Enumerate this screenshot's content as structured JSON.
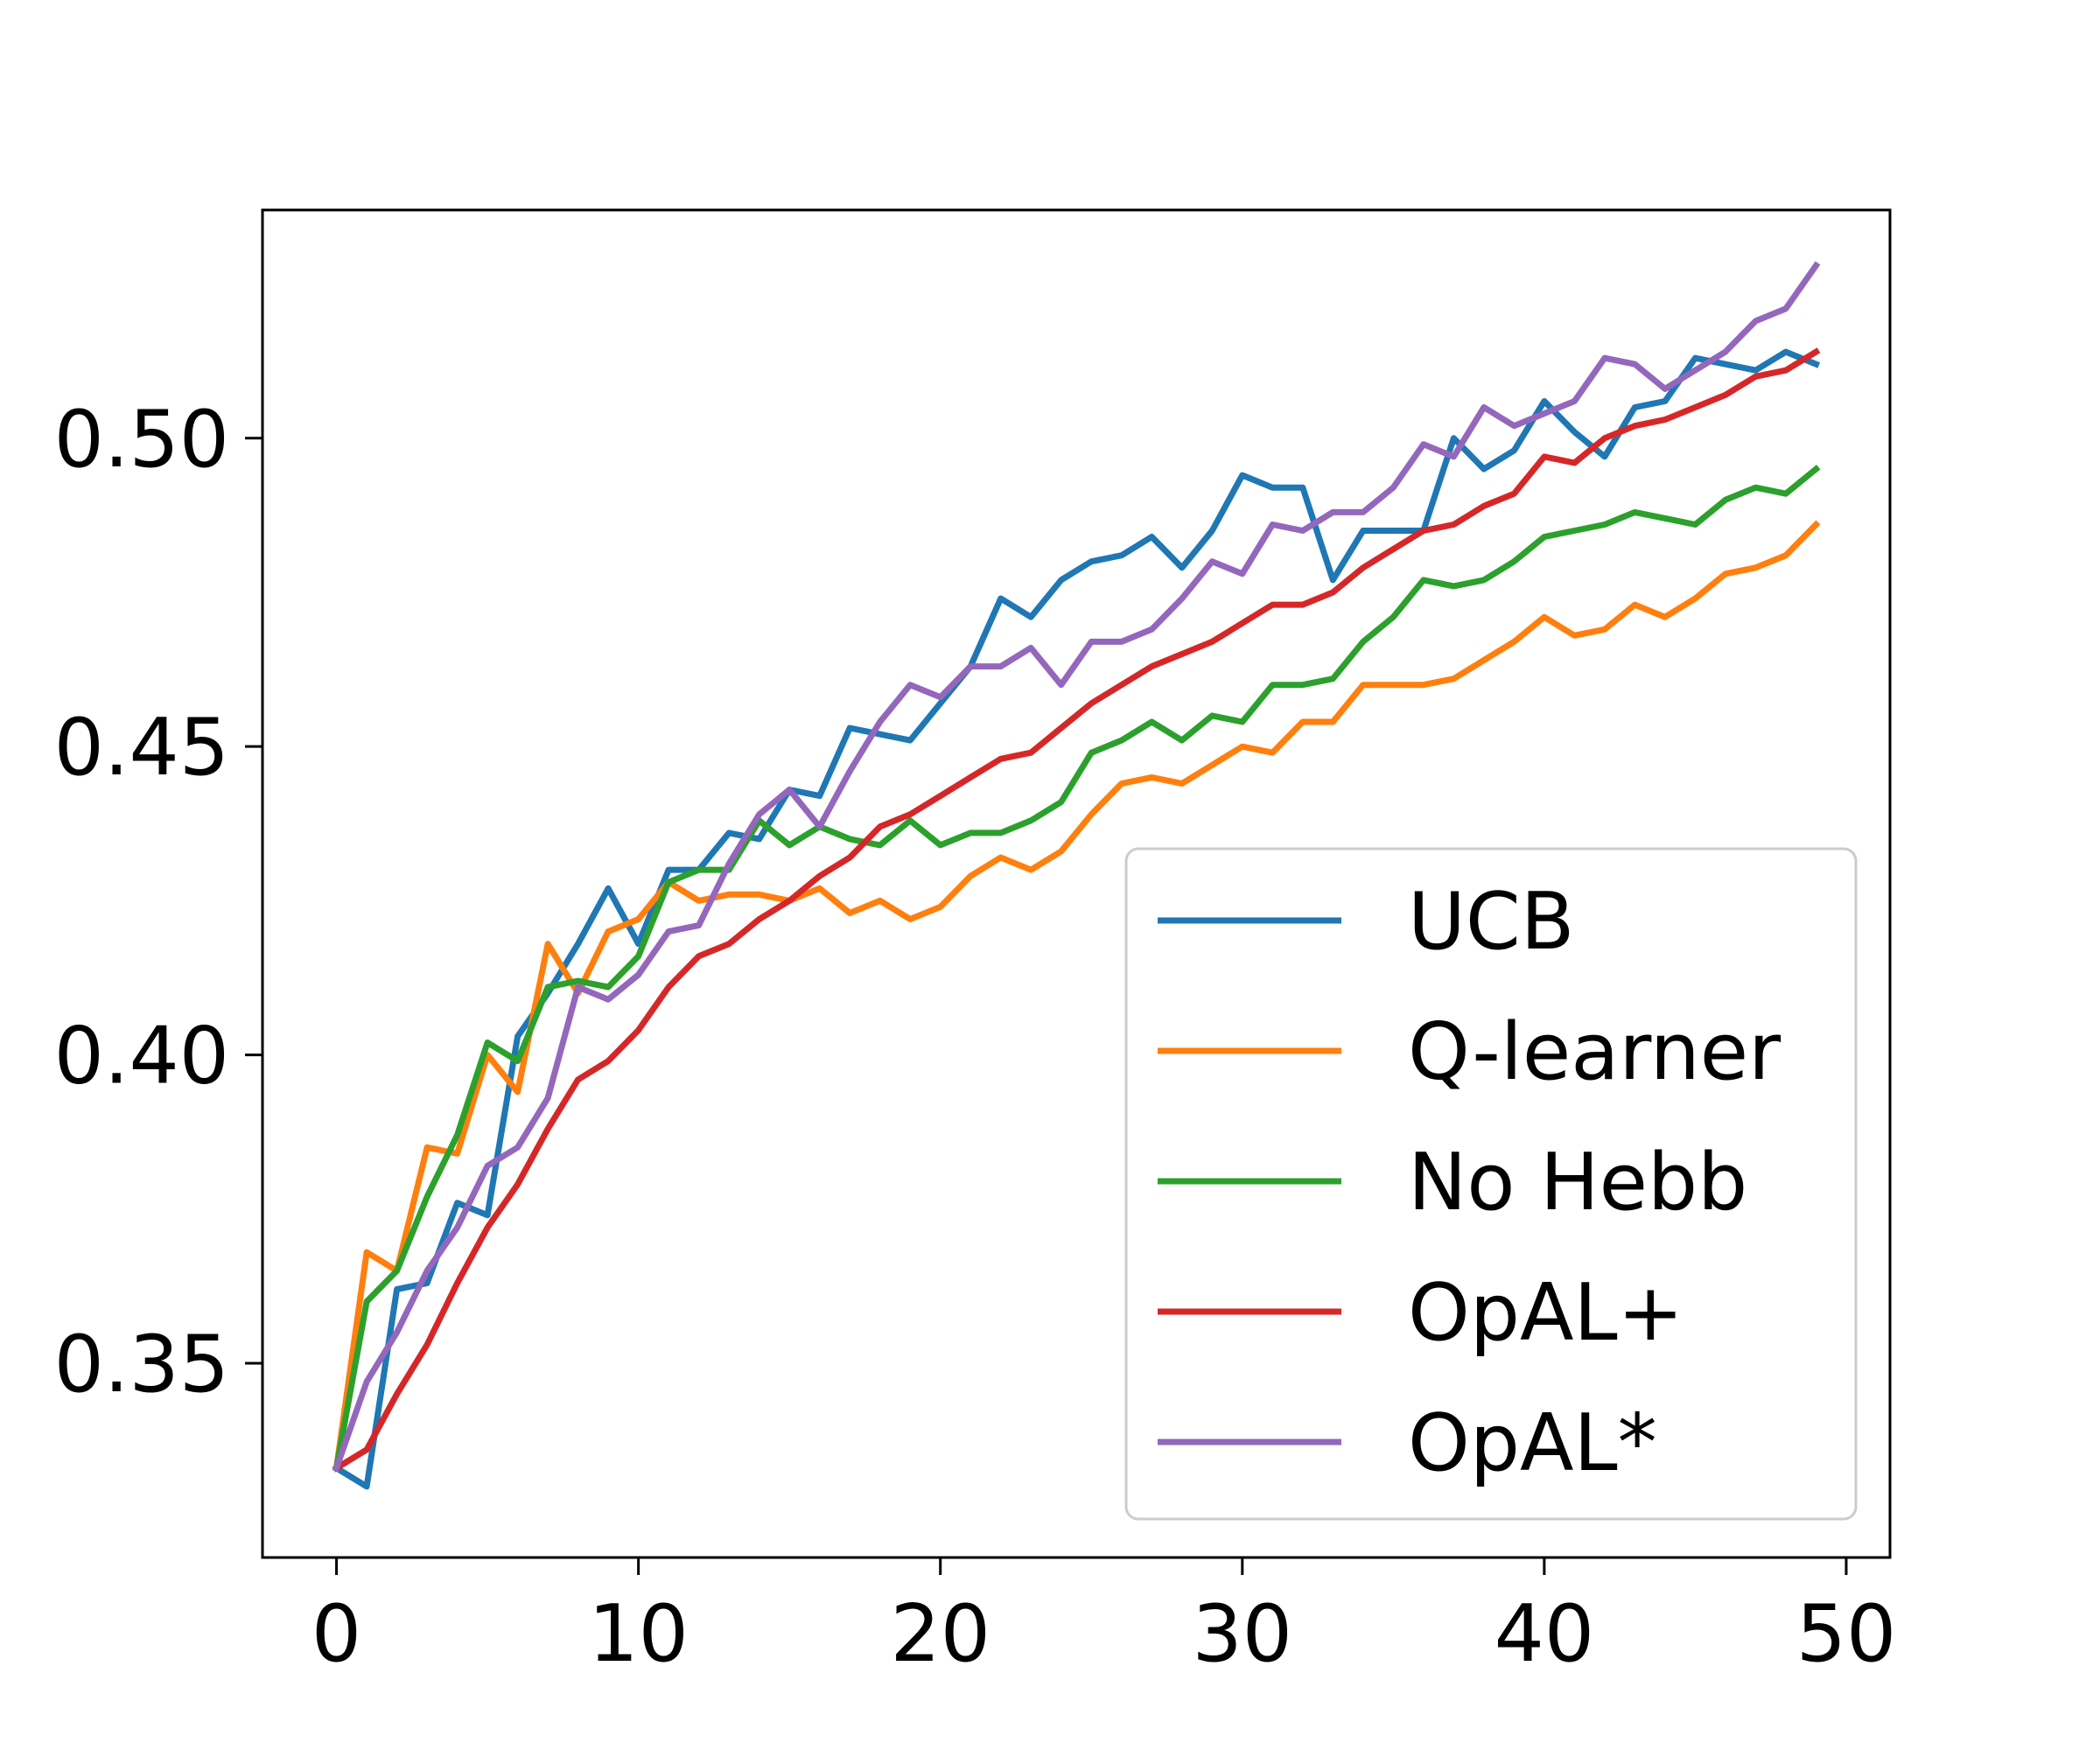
{
  "chart_data": {
    "type": "line",
    "title": "",
    "xlabel": "",
    "ylabel": "",
    "xlim": [
      -2.45,
      51.45
    ],
    "ylim": [
      0.3185,
      0.537
    ],
    "xticks": [
      0,
      10,
      20,
      30,
      40,
      50
    ],
    "xtick_labels": [
      "0",
      "10",
      "20",
      "30",
      "40",
      "50"
    ],
    "yticks": [
      0.35,
      0.4,
      0.45,
      0.5
    ],
    "ytick_labels": [
      "0.35",
      "0.40",
      "0.45",
      "0.50"
    ],
    "grid": false,
    "legend_position": "lower-right",
    "x": [
      0,
      1,
      2,
      3,
      4,
      5,
      6,
      7,
      8,
      9,
      10,
      11,
      12,
      13,
      14,
      15,
      16,
      17,
      18,
      19,
      20,
      21,
      22,
      23,
      24,
      25,
      26,
      27,
      28,
      29,
      30,
      31,
      32,
      33,
      34,
      35,
      36,
      37,
      38,
      39,
      40,
      41,
      42,
      43,
      44,
      45,
      46,
      47,
      48,
      49
    ],
    "series": [
      {
        "name": "UCB",
        "color": "#1f77b4",
        "values": [
          0.333,
          0.33,
          0.362,
          0.363,
          0.376,
          0.374,
          0.403,
          0.41,
          0.418,
          0.427,
          0.418,
          0.43,
          0.43,
          0.436,
          0.435,
          0.443,
          0.442,
          0.453,
          0.452,
          0.451,
          0.457,
          0.463,
          0.474,
          0.471,
          0.477,
          0.48,
          0.481,
          0.484,
          0.479,
          0.485,
          0.494,
          0.492,
          0.492,
          0.477,
          0.485,
          0.485,
          0.485,
          0.5,
          0.495,
          0.498,
          0.506,
          0.501,
          0.497,
          0.505,
          0.506,
          0.513,
          0.512,
          0.511,
          0.514,
          0.512
        ]
      },
      {
        "name": "Q-learner",
        "color": "#ff7f0e",
        "values": [
          0.333,
          0.368,
          0.365,
          0.385,
          0.384,
          0.4,
          0.394,
          0.418,
          0.41,
          0.42,
          0.422,
          0.428,
          0.425,
          0.426,
          0.426,
          0.425,
          0.427,
          0.423,
          0.425,
          0.422,
          0.424,
          0.429,
          0.432,
          0.43,
          0.433,
          0.439,
          0.444,
          0.445,
          0.444,
          0.447,
          0.45,
          0.449,
          0.454,
          0.454,
          0.46,
          0.46,
          0.46,
          0.461,
          0.464,
          0.467,
          0.471,
          0.468,
          0.469,
          0.473,
          0.471,
          0.474,
          0.478,
          0.479,
          0.481,
          0.486
        ]
      },
      {
        "name": "No Hebb",
        "color": "#2ca02c",
        "values": [
          0.333,
          0.36,
          0.365,
          0.377,
          0.387,
          0.402,
          0.399,
          0.411,
          0.412,
          0.411,
          0.416,
          0.428,
          0.43,
          0.43,
          0.438,
          0.434,
          0.437,
          0.435,
          0.434,
          0.438,
          0.434,
          0.436,
          0.436,
          0.438,
          0.441,
          0.449,
          0.451,
          0.454,
          0.451,
          0.455,
          0.454,
          0.46,
          0.46,
          0.461,
          0.467,
          0.471,
          0.477,
          0.476,
          0.477,
          0.48,
          0.484,
          0.485,
          0.486,
          0.488,
          0.487,
          0.486,
          0.49,
          0.492,
          0.491,
          0.495
        ]
      },
      {
        "name": "OpAL+",
        "color": "#d62728",
        "values": [
          0.333,
          0.336,
          0.345,
          0.353,
          0.363,
          0.372,
          0.379,
          0.388,
          0.396,
          0.399,
          0.404,
          0.411,
          0.416,
          0.418,
          0.422,
          0.425,
          0.429,
          0.432,
          0.437,
          0.439,
          0.442,
          0.445,
          0.448,
          0.449,
          0.453,
          0.457,
          0.46,
          0.463,
          0.465,
          0.467,
          0.47,
          0.473,
          0.473,
          0.475,
          0.479,
          0.482,
          0.485,
          0.486,
          0.489,
          0.491,
          0.497,
          0.496,
          0.5,
          0.502,
          0.503,
          0.505,
          0.507,
          0.51,
          0.511,
          0.514
        ]
      },
      {
        "name": "OpAL*",
        "color": "#9467bd",
        "values": [
          0.333,
          0.347,
          0.355,
          0.365,
          0.372,
          0.382,
          0.385,
          0.393,
          0.411,
          0.409,
          0.413,
          0.42,
          0.421,
          0.431,
          0.439,
          0.443,
          0.437,
          0.446,
          0.454,
          0.46,
          0.458,
          0.463,
          0.463,
          0.466,
          0.46,
          0.467,
          0.467,
          0.469,
          0.474,
          0.48,
          0.478,
          0.486,
          0.485,
          0.488,
          0.488,
          0.492,
          0.499,
          0.497,
          0.505,
          0.502,
          0.504,
          0.506,
          0.513,
          0.512,
          0.508,
          0.511,
          0.514,
          0.519,
          0.521,
          0.528
        ]
      }
    ]
  }
}
